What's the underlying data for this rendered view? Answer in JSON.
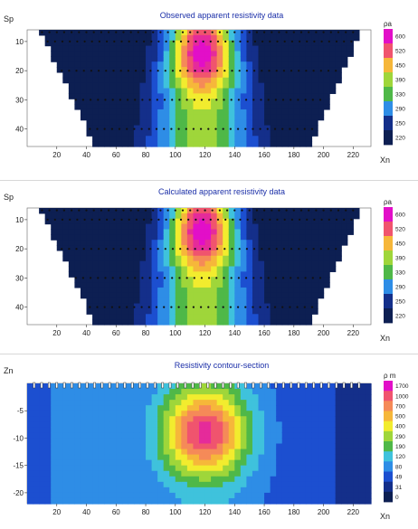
{
  "chart_data": [
    {
      "type": "heatmap",
      "title": "Observed apparent resistivity data",
      "ylabel": "Sp",
      "xlabel": "Xn",
      "x_ticks": [
        20,
        40,
        60,
        80,
        100,
        120,
        140,
        160,
        180,
        200,
        220
      ],
      "y_ticks": [
        10,
        20,
        30,
        40
      ],
      "xlim": [
        0,
        232
      ],
      "ylim": [
        6,
        46
      ],
      "colorbar_unit": "ρa",
      "colorbar_levels": [
        600,
        520,
        450,
        390,
        330,
        290,
        250,
        220
      ],
      "grid": false
    },
    {
      "type": "heatmap",
      "title": "Calculated apparent resistivity data",
      "ylabel": "Sp",
      "xlabel": "Xn",
      "x_ticks": [
        20,
        40,
        60,
        80,
        100,
        120,
        140,
        160,
        180,
        200,
        220
      ],
      "y_ticks": [
        10,
        20,
        30,
        40
      ],
      "xlim": [
        0,
        232
      ],
      "ylim": [
        6,
        46
      ],
      "colorbar_unit": "ρa",
      "colorbar_levels": [
        600,
        520,
        450,
        390,
        330,
        290,
        250,
        220
      ],
      "grid": false
    },
    {
      "type": "heatmap",
      "title": "Resistivity contour-section",
      "ylabel": "Zn",
      "xlabel": "Xn",
      "x_ticks": [
        20,
        40,
        60,
        80,
        100,
        120,
        140,
        160,
        180,
        200,
        220
      ],
      "y_ticks": [
        -5,
        -10,
        -15,
        -20
      ],
      "xlim": [
        0,
        232
      ],
      "ylim": [
        -22,
        0
      ],
      "colorbar_unit": "ρ m",
      "colorbar_levels": [
        1700,
        1000,
        700,
        500,
        400,
        290,
        190,
        120,
        80,
        49,
        31,
        0
      ],
      "grid": false
    }
  ]
}
